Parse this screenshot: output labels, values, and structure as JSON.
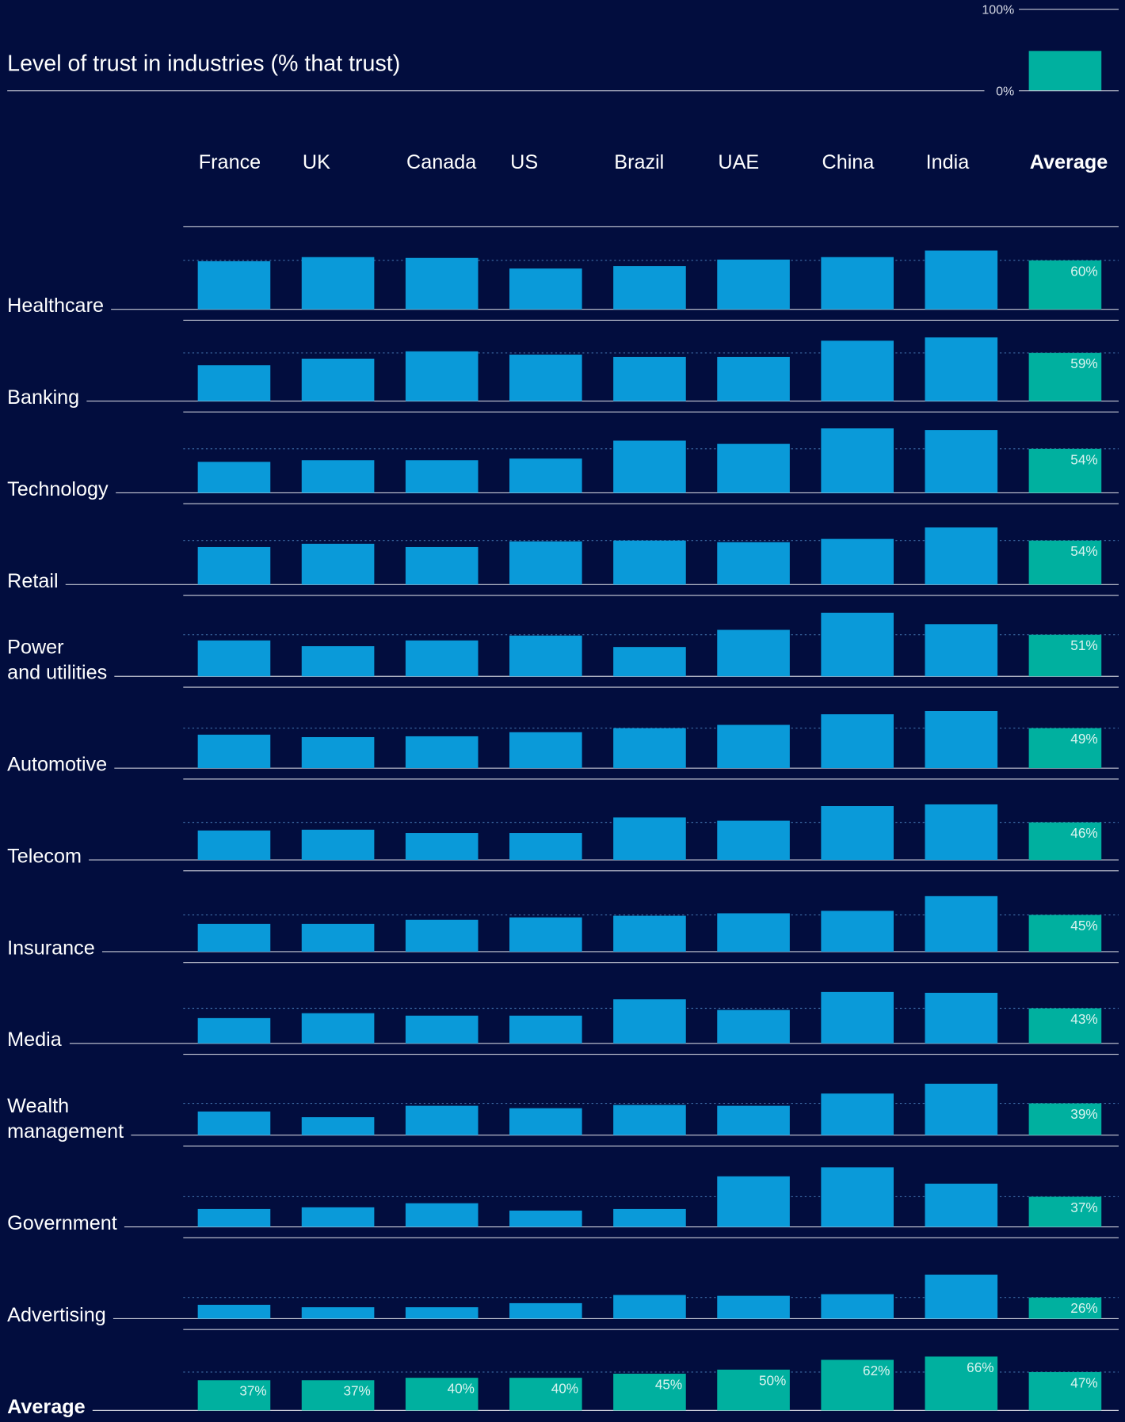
{
  "chart_data": {
    "type": "bar",
    "title": "Level of trust in industries (% that trust)",
    "categories": [
      "France",
      "UK",
      "Canada",
      "US",
      "Brazil",
      "UAE",
      "China",
      "India",
      "Average"
    ],
    "ylim": [
      0,
      100
    ],
    "yticks": [
      {
        "value": 0,
        "label": "0%"
      },
      {
        "value": 100,
        "label": "100%"
      }
    ],
    "color": "#0a9ad9",
    "highlight_color": "#00b09f",
    "series": [
      {
        "name": "Healthcare",
        "values": [
          59,
          64,
          63,
          50,
          53,
          61,
          64,
          72,
          60
        ],
        "value_labels": [
          null,
          null,
          null,
          null,
          null,
          null,
          null,
          null,
          "60%"
        ]
      },
      {
        "name": "Banking",
        "values": [
          44,
          52,
          61,
          57,
          54,
          54,
          74,
          78,
          59
        ],
        "value_labels": [
          null,
          null,
          null,
          null,
          null,
          null,
          null,
          null,
          "59%"
        ]
      },
      {
        "name": "Technology",
        "values": [
          38,
          40,
          40,
          42,
          64,
          60,
          79,
          77,
          54
        ],
        "value_labels": [
          null,
          null,
          null,
          null,
          null,
          null,
          null,
          null,
          "54%"
        ]
      },
      {
        "name": "Retail",
        "values": [
          46,
          50,
          46,
          53,
          54,
          52,
          56,
          70,
          54
        ],
        "value_labels": [
          null,
          null,
          null,
          null,
          null,
          null,
          null,
          null,
          "54%"
        ]
      },
      {
        "name": "Power and utilities",
        "values": [
          44,
          37,
          44,
          50,
          36,
          57,
          78,
          64,
          51
        ],
        "value_labels": [
          null,
          null,
          null,
          null,
          null,
          null,
          null,
          null,
          "51%"
        ]
      },
      {
        "name": "Automotive",
        "values": [
          41,
          38,
          39,
          44,
          49,
          53,
          66,
          70,
          49
        ],
        "value_labels": [
          null,
          null,
          null,
          null,
          null,
          null,
          null,
          null,
          "49%"
        ]
      },
      {
        "name": "Telecom",
        "values": [
          36,
          37,
          33,
          33,
          52,
          48,
          66,
          68,
          46
        ],
        "value_labels": [
          null,
          null,
          null,
          null,
          null,
          null,
          null,
          null,
          "46%"
        ]
      },
      {
        "name": "Insurance",
        "values": [
          34,
          34,
          39,
          42,
          44,
          47,
          50,
          68,
          45
        ],
        "value_labels": [
          null,
          null,
          null,
          null,
          null,
          null,
          null,
          null,
          "45%"
        ]
      },
      {
        "name": "Media",
        "values": [
          31,
          37,
          34,
          34,
          54,
          41,
          63,
          62,
          43
        ],
        "value_labels": [
          null,
          null,
          null,
          null,
          null,
          null,
          null,
          null,
          "43%"
        ]
      },
      {
        "name": "Wealth management",
        "values": [
          29,
          22,
          36,
          33,
          37,
          36,
          51,
          63,
          39
        ],
        "value_labels": [
          null,
          null,
          null,
          null,
          null,
          null,
          null,
          null,
          "39%"
        ]
      },
      {
        "name": "Government",
        "values": [
          22,
          24,
          29,
          20,
          22,
          62,
          73,
          53,
          37
        ],
        "value_labels": [
          null,
          null,
          null,
          null,
          null,
          null,
          null,
          null,
          "37%"
        ]
      },
      {
        "name": "Advertising",
        "values": [
          17,
          14,
          14,
          19,
          29,
          28,
          30,
          54,
          26
        ],
        "value_labels": [
          null,
          null,
          null,
          null,
          null,
          null,
          null,
          null,
          "26%"
        ]
      }
    ],
    "summary": {
      "name": "Average",
      "values": [
        37,
        37,
        40,
        40,
        45,
        50,
        62,
        66,
        47
      ],
      "value_labels": [
        "37%",
        "37%",
        "40%",
        "40%",
        "45%",
        "50%",
        "62%",
        "66%",
        "47%"
      ]
    }
  }
}
